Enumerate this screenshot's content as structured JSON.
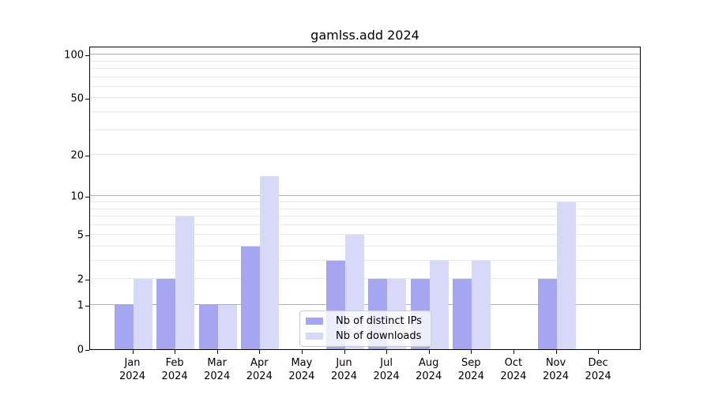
{
  "figure": {
    "title": "gamlss.add 2024",
    "background_color": "#ffffff"
  },
  "chart_data": {
    "type": "bar",
    "title": "gamlss.add 2024",
    "xlabel": "",
    "ylabel": "",
    "yscale": "log1p",
    "ylim": [
      0,
      115
    ],
    "grid": "on",
    "legend_position": "lower-center-inside",
    "categories": [
      "Jan",
      "Feb",
      "Mar",
      "Apr",
      "May",
      "Jun",
      "Jul",
      "Aug",
      "Sep",
      "Oct",
      "Nov",
      "Dec"
    ],
    "category_year": "2024",
    "x_tick_labels": [
      "Jan 2024",
      "Feb 2024",
      "Mar 2024",
      "Apr 2024",
      "May 2024",
      "Jun 2024",
      "Jul 2024",
      "Aug 2024",
      "Sep 2024",
      "Oct 2024",
      "Nov 2024",
      "Dec 2024"
    ],
    "series": [
      {
        "name": "Nb of distinct IPs",
        "color": "#a5a5f0",
        "values": [
          1,
          2,
          1,
          4,
          0,
          3,
          2,
          2,
          2,
          0,
          2,
          0
        ]
      },
      {
        "name": "Nb of downloads",
        "color": "#d8d8f8",
        "values": [
          2,
          7,
          1,
          14,
          0,
          5,
          2,
          3,
          3,
          0,
          9,
          0
        ]
      }
    ],
    "yticks": [
      0,
      1,
      2,
      5,
      10,
      20,
      50,
      100
    ],
    "gridlines": {
      "major": [
        1,
        10,
        100
      ],
      "minor": [
        2,
        3,
        4,
        5,
        6,
        7,
        8,
        9,
        20,
        30,
        40,
        50,
        60,
        70,
        80,
        90
      ]
    },
    "colors": {
      "major_grid": "#b0b0b0",
      "minor_grid": "#e9e9e9",
      "spine": "#000000",
      "text": "#000000",
      "legend_border": "#cccccc"
    }
  }
}
